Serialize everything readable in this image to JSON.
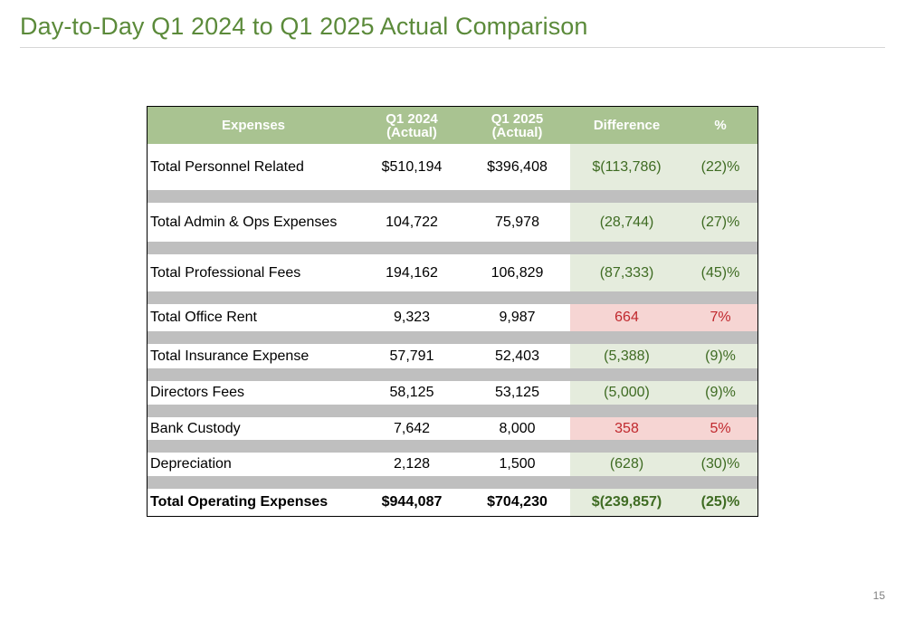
{
  "title": "Day-to-Day Q1 2024 to Q1 2025 Actual Comparison",
  "page_number": "15",
  "colors": {
    "title": "#5b8a3a",
    "header_bg": "#a9c391",
    "spacer": "#bfbfbf",
    "decrease_bg": "#e5ecdd",
    "decrease_text": "#3e6b22",
    "increase_bg": "#f6d5d3",
    "increase_text": "#c0282d"
  },
  "table": {
    "headers": {
      "expenses": "Expenses",
      "q1_2024_line1": "Q1 2024",
      "q1_2024_line2": "(Actual)",
      "q1_2025_line1": "Q1 2025",
      "q1_2025_line2": "(Actual)",
      "difference": "Difference",
      "percent": "%"
    },
    "rows": [
      {
        "label": "Total Personnel Related",
        "q1_2024": "$510,194",
        "q1_2025": "$396,408",
        "difference": "$(113,786)",
        "percent": "(22)%",
        "direction": "decrease"
      },
      {
        "label": "Total Admin & Ops Expenses",
        "q1_2024": "104,722",
        "q1_2025": "75,978",
        "difference": "(28,744)",
        "percent": "(27)%",
        "direction": "decrease"
      },
      {
        "label": "Total Professional Fees",
        "q1_2024": "194,162",
        "q1_2025": "106,829",
        "difference": "(87,333)",
        "percent": "(45)%",
        "direction": "decrease"
      },
      {
        "label": "Total Office Rent",
        "q1_2024": "9,323",
        "q1_2025": "9,987",
        "difference": "664",
        "percent": "7%",
        "direction": "increase"
      },
      {
        "label": "Total Insurance Expense",
        "q1_2024": "57,791",
        "q1_2025": "52,403",
        "difference": "(5,388)",
        "percent": "(9)%",
        "direction": "decrease"
      },
      {
        "label": "Directors Fees",
        "q1_2024": "58,125",
        "q1_2025": "53,125",
        "difference": "(5,000)",
        "percent": "(9)%",
        "direction": "decrease"
      },
      {
        "label": "Bank Custody",
        "q1_2024": "7,642",
        "q1_2025": "8,000",
        "difference": "358",
        "percent": "5%",
        "direction": "increase"
      },
      {
        "label": "Depreciation",
        "q1_2024": "2,128",
        "q1_2025": "1,500",
        "difference": "(628)",
        "percent": "(30)%",
        "direction": "decrease"
      }
    ],
    "total": {
      "label": "Total Operating Expenses",
      "q1_2024": "$944,087",
      "q1_2025": "$704,230",
      "difference": "$(239,857)",
      "percent": "(25)%",
      "direction": "decrease"
    }
  }
}
